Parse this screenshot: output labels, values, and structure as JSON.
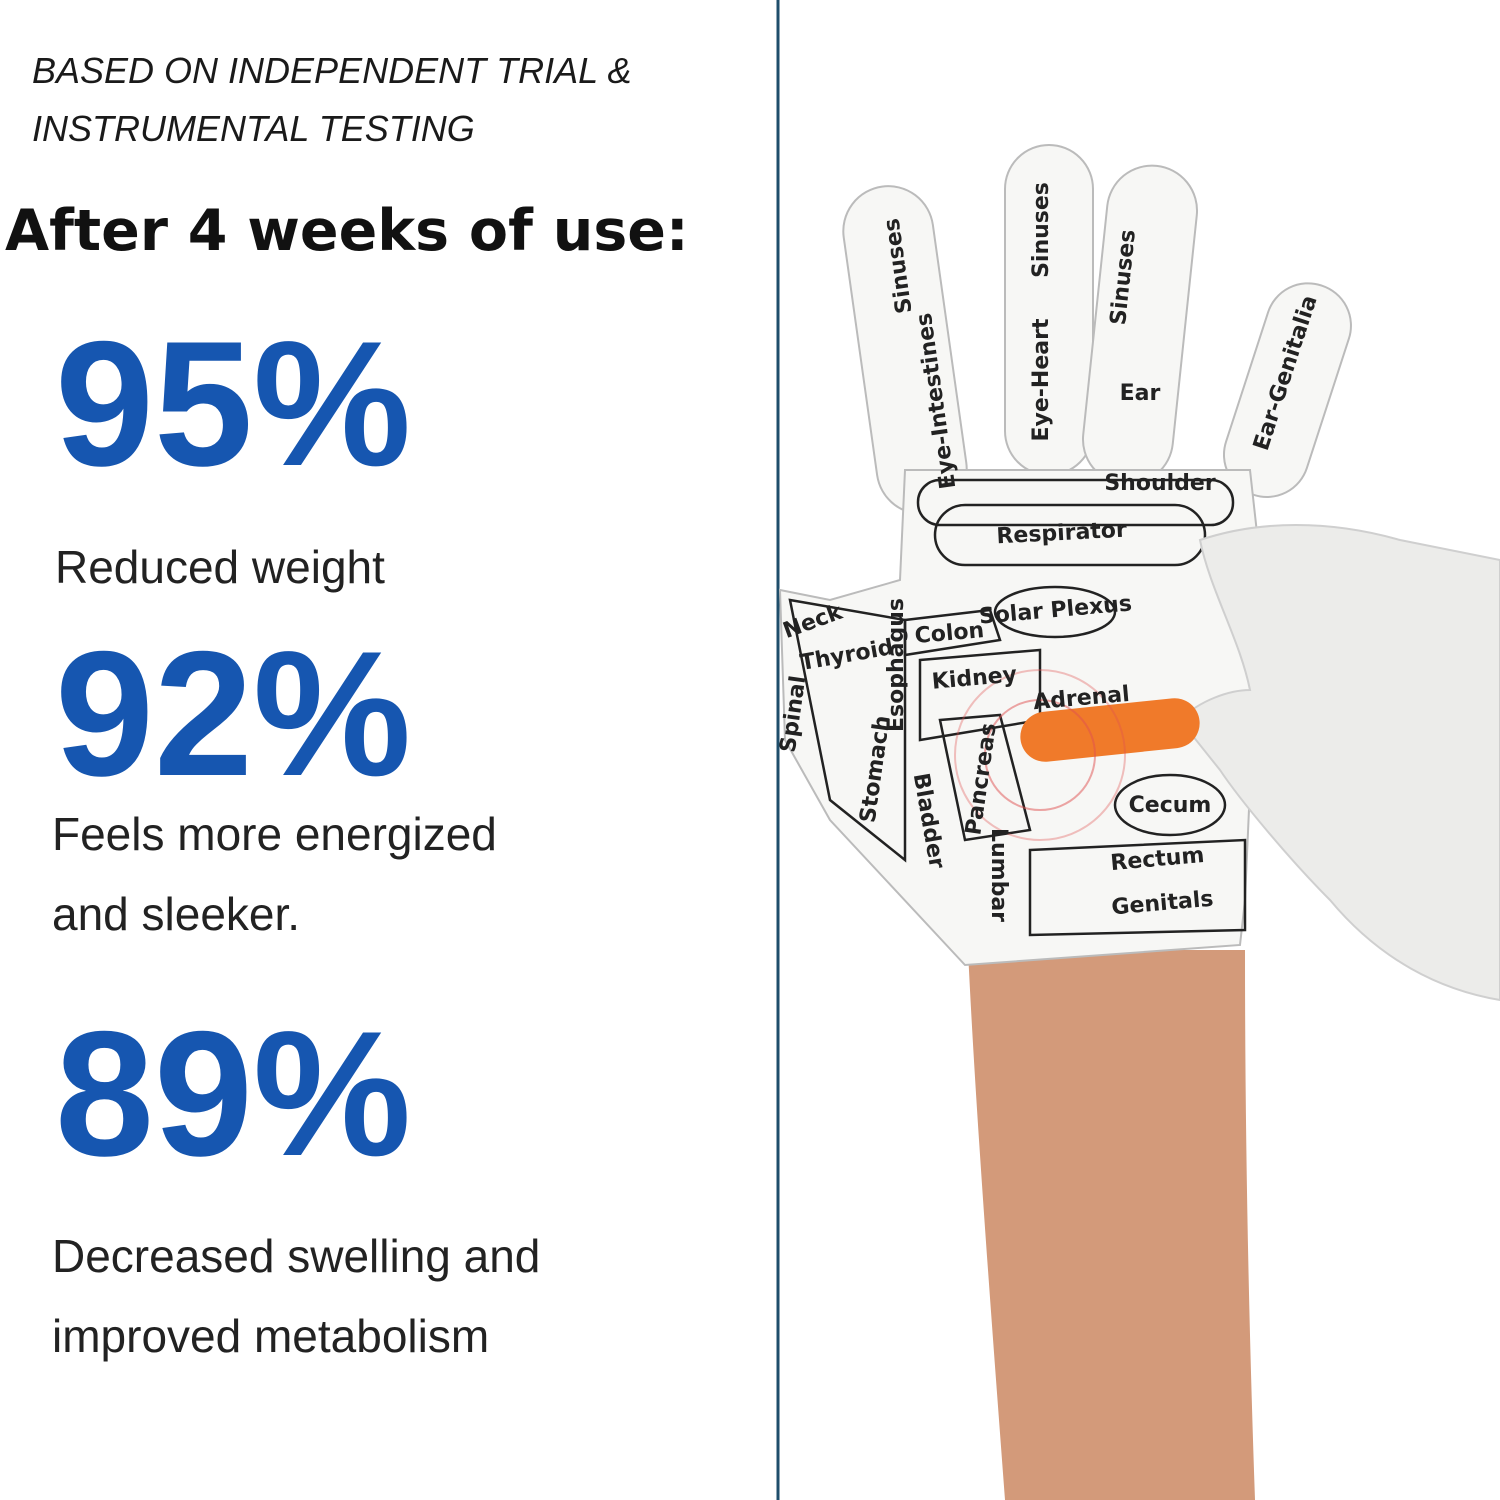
{
  "header": {
    "note": [
      "BASED ON INDEPENDENT TRIAL &",
      "INSTRUMENTAL TESTING"
    ],
    "headline": "After 4 weeks of use:"
  },
  "stats": [
    {
      "value": "95%",
      "text": [
        "Reduced weight"
      ]
    },
    {
      "value": "92%",
      "text": [
        "Feels more energized",
        "and sleeker."
      ]
    },
    {
      "value": "89%",
      "text": [
        "Decreased swelling and",
        "improved metabolism"
      ]
    }
  ],
  "glove": {
    "labels": [
      "Sinuses",
      "Sinuses",
      "Sinuses",
      "Eye-Intestines",
      "Eye-Heart",
      "Ear",
      "Ear-Genitalia",
      "Shoulder",
      "Respirator",
      "Solar Plexus",
      "Colon",
      "Neck",
      "Thyroid",
      "Esophagus",
      "Kidney",
      "Adrenal",
      "Pancreas",
      "Spinal",
      "Stomach",
      "Bladder",
      "Lumbar",
      "Cecum",
      "Rectum",
      "Genitals"
    ]
  }
}
